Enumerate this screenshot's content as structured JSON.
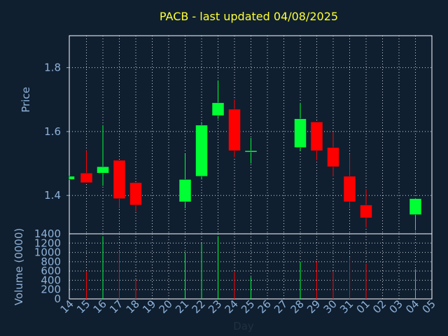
{
  "chart_data": [
    {
      "type": "candlestick",
      "title": "PACB - last updated 04/08/2025",
      "ylabel": "Price",
      "ylim": [
        1.28,
        1.9
      ],
      "yticks": [
        1.4,
        1.6,
        1.8
      ],
      "grid": true,
      "colors": {
        "up": "#00ff33",
        "down": "#ff0000",
        "neutral": "#00ff33"
      },
      "categories": [
        "14",
        "15",
        "16",
        "17",
        "18",
        "19",
        "20",
        "21",
        "22",
        "23",
        "24",
        "25",
        "26",
        "27",
        "28",
        "29",
        "30",
        "31",
        "01",
        "02",
        "03",
        "04",
        "05"
      ],
      "candles": [
        {
          "x": "14",
          "open": 1.45,
          "high": 1.46,
          "low": 1.45,
          "close": 1.46
        },
        {
          "x": "15",
          "open": 1.47,
          "high": 1.54,
          "low": 1.44,
          "close": 1.44
        },
        {
          "x": "16",
          "open": 1.47,
          "high": 1.62,
          "low": 1.43,
          "close": 1.49
        },
        {
          "x": "17",
          "open": 1.51,
          "high": 1.51,
          "low": 1.36,
          "close": 1.39
        },
        {
          "x": "18",
          "open": 1.44,
          "high": 1.44,
          "low": 1.35,
          "close": 1.37
        },
        {
          "x": "21",
          "open": 1.38,
          "high": 1.53,
          "low": 1.36,
          "close": 1.45
        },
        {
          "x": "22",
          "open": 1.46,
          "high": 1.63,
          "low": 1.45,
          "close": 1.62
        },
        {
          "x": "23",
          "open": 1.65,
          "high": 1.76,
          "low": 1.64,
          "close": 1.69
        },
        {
          "x": "24",
          "open": 1.67,
          "high": 1.7,
          "low": 1.52,
          "close": 1.54
        },
        {
          "x": "25",
          "open": 1.54,
          "high": 1.58,
          "low": 1.5,
          "close": 1.54
        },
        {
          "x": "28",
          "open": 1.55,
          "high": 1.69,
          "low": 1.54,
          "close": 1.64
        },
        {
          "x": "29",
          "open": 1.63,
          "high": 1.63,
          "low": 1.51,
          "close": 1.54
        },
        {
          "x": "30",
          "open": 1.55,
          "high": 1.6,
          "low": 1.46,
          "close": 1.49
        },
        {
          "x": "31",
          "open": 1.46,
          "high": 1.53,
          "low": 1.36,
          "close": 1.38
        },
        {
          "x": "01",
          "open": 1.37,
          "high": 1.42,
          "low": 1.3,
          "close": 1.33
        },
        {
          "x": "04",
          "open": 1.34,
          "high": 1.39,
          "low": 1.29,
          "close": 1.39
        }
      ]
    },
    {
      "type": "bar",
      "xlabel": "Day",
      "ylabel": "Volume (0000)",
      "ylim": [
        0,
        1400
      ],
      "yticks": [
        0,
        200,
        400,
        600,
        800,
        1000,
        1200,
        1400
      ],
      "categories": [
        "14",
        "15",
        "16",
        "17",
        "18",
        "19",
        "20",
        "21",
        "22",
        "23",
        "24",
        "25",
        "26",
        "27",
        "28",
        "29",
        "30",
        "31",
        "01",
        "02",
        "03",
        "04",
        "05"
      ],
      "values": [
        {
          "x": "15",
          "value": 600,
          "dir": "down"
        },
        {
          "x": "16",
          "value": 1350,
          "dir": "up"
        },
        {
          "x": "17",
          "value": 1000,
          "dir": "down"
        },
        {
          "x": "18",
          "value": 420,
          "dir": "down"
        },
        {
          "x": "21",
          "value": 1000,
          "dir": "up"
        },
        {
          "x": "22",
          "value": 1200,
          "dir": "up"
        },
        {
          "x": "23",
          "value": 1350,
          "dir": "up"
        },
        {
          "x": "24",
          "value": 580,
          "dir": "down"
        },
        {
          "x": "25",
          "value": 470,
          "dir": "up"
        },
        {
          "x": "28",
          "value": 800,
          "dir": "up"
        },
        {
          "x": "29",
          "value": 820,
          "dir": "down"
        },
        {
          "x": "30",
          "value": 600,
          "dir": "down"
        },
        {
          "x": "31",
          "value": 900,
          "dir": "down"
        },
        {
          "x": "01",
          "value": 760,
          "dir": "down"
        },
        {
          "x": "04",
          "value": 640,
          "dir": "up"
        }
      ]
    }
  ]
}
